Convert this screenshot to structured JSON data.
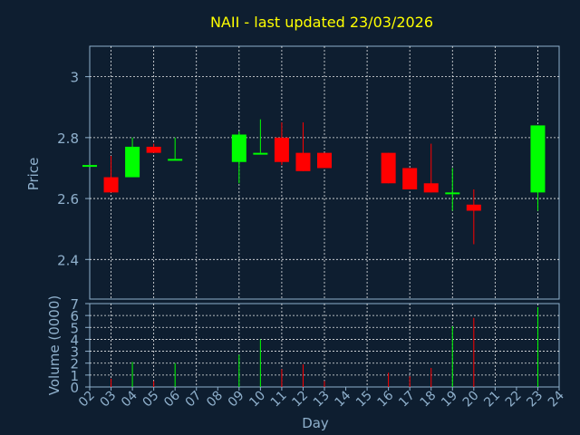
{
  "chart_data": {
    "type": "candlestick",
    "title": "NAII - last updated 23/03/2026",
    "xlabel": "Day",
    "ylabel": "Price",
    "volume_label": "Volume (0000)",
    "x_ticks": [
      "02",
      "03",
      "04",
      "05",
      "06",
      "07",
      "08",
      "09",
      "10",
      "11",
      "12",
      "13",
      "14",
      "15",
      "16",
      "17",
      "18",
      "19",
      "20",
      "21",
      "22",
      "23",
      "24"
    ],
    "price_ticks": [
      2.4,
      2.6,
      2.8,
      3
    ],
    "price_tick_labels": [
      "2.4",
      "2.6",
      "2.8",
      "3"
    ],
    "price_range": [
      2.27,
      3.1
    ],
    "volume_ticks": [
      0,
      1,
      2,
      3,
      4,
      5,
      6,
      7
    ],
    "volume_tick_labels": [
      "0",
      "1",
      "2",
      "3",
      "4",
      "5",
      "6",
      "7"
    ],
    "volume_range": [
      0,
      7
    ],
    "grid": true,
    "up_color": "#00ff00",
    "down_color": "#ff0000",
    "candles": [
      {
        "day": "02",
        "open": 2.71,
        "high": 2.71,
        "low": 2.71,
        "close": 2.71,
        "volume": 0
      },
      {
        "day": "03",
        "open": 2.67,
        "high": 2.74,
        "low": 2.62,
        "close": 2.62,
        "volume": 0.7
      },
      {
        "day": "04",
        "open": 2.67,
        "high": 2.8,
        "low": 2.67,
        "close": 2.77,
        "volume": 2.1
      },
      {
        "day": "05",
        "open": 2.77,
        "high": 2.78,
        "low": 2.75,
        "close": 2.75,
        "volume": 0.5
      },
      {
        "day": "06",
        "open": 2.73,
        "high": 2.8,
        "low": 2.73,
        "close": 2.73,
        "volume": 2.0
      },
      {
        "day": "09",
        "open": 2.72,
        "high": 2.82,
        "low": 2.65,
        "close": 2.81,
        "volume": 2.7
      },
      {
        "day": "10",
        "open": 2.75,
        "high": 2.86,
        "low": 2.75,
        "close": 2.75,
        "volume": 4.0
      },
      {
        "day": "11",
        "open": 2.8,
        "high": 2.85,
        "low": 2.71,
        "close": 2.72,
        "volume": 1.5
      },
      {
        "day": "12",
        "open": 2.75,
        "high": 2.85,
        "low": 2.69,
        "close": 2.69,
        "volume": 1.9
      },
      {
        "day": "13",
        "open": 2.75,
        "high": 2.75,
        "low": 2.7,
        "close": 2.7,
        "volume": 0.5
      },
      {
        "day": "16",
        "open": 2.75,
        "high": 2.75,
        "low": 2.65,
        "close": 2.65,
        "volume": 1.2
      },
      {
        "day": "17",
        "open": 2.7,
        "high": 2.7,
        "low": 2.63,
        "close": 2.63,
        "volume": 0.9
      },
      {
        "day": "18",
        "open": 2.65,
        "high": 2.78,
        "low": 2.62,
        "close": 2.62,
        "volume": 1.6
      },
      {
        "day": "19",
        "open": 2.62,
        "high": 2.7,
        "low": 2.56,
        "close": 2.62,
        "volume": 5.1
      },
      {
        "day": "20",
        "open": 2.58,
        "high": 2.63,
        "low": 2.45,
        "close": 2.56,
        "volume": 5.8
      },
      {
        "day": "23",
        "open": 2.62,
        "high": 2.84,
        "low": 2.56,
        "close": 2.84,
        "volume": 6.7
      }
    ]
  }
}
